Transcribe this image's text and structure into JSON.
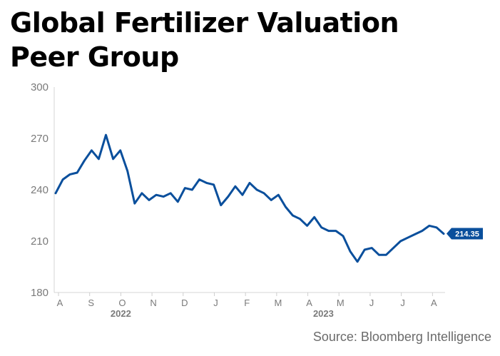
{
  "chart_data": {
    "type": "line",
    "title_line1": "Global Fertilizer Valuation",
    "title_line2": "Peer Group",
    "source": "Source: Bloomberg Intelligence",
    "y_ticks": [
      "300",
      "270",
      "240",
      "210",
      "180"
    ],
    "ylim": [
      180,
      300
    ],
    "x_month_labels": [
      "A",
      "S",
      "O",
      "N",
      "D",
      "J",
      "F",
      "M",
      "A",
      "M",
      "J",
      "J",
      "A"
    ],
    "x_year_labels": [
      "2022",
      "2023"
    ],
    "last_value_label": "214.35",
    "line_color": "#0a4f9c",
    "grid": false,
    "x": [
      "2022-08-01",
      "2022-08-08",
      "2022-08-15",
      "2022-08-22",
      "2022-08-29",
      "2022-09-05",
      "2022-09-12",
      "2022-09-19",
      "2022-09-26",
      "2022-10-03",
      "2022-10-10",
      "2022-10-17",
      "2022-10-24",
      "2022-10-31",
      "2022-11-07",
      "2022-11-14",
      "2022-11-21",
      "2022-11-28",
      "2022-12-05",
      "2022-12-12",
      "2022-12-19",
      "2022-12-26",
      "2023-01-02",
      "2023-01-09",
      "2023-01-16",
      "2023-01-23",
      "2023-01-30",
      "2023-02-06",
      "2023-02-13",
      "2023-02-20",
      "2023-02-27",
      "2023-03-06",
      "2023-03-13",
      "2023-03-20",
      "2023-03-27",
      "2023-04-03",
      "2023-04-10",
      "2023-04-17",
      "2023-04-24",
      "2023-05-01",
      "2023-05-08",
      "2023-05-15",
      "2023-05-22",
      "2023-05-29",
      "2023-06-05",
      "2023-06-12",
      "2023-06-19",
      "2023-06-26",
      "2023-07-03",
      "2023-07-10",
      "2023-07-17",
      "2023-07-24",
      "2023-07-31",
      "2023-08-07",
      "2023-08-14"
    ],
    "series": [
      {
        "values": [
          238,
          246,
          249,
          250,
          257,
          263,
          258,
          272,
          258,
          263,
          251,
          232,
          238,
          234,
          237,
          236,
          238,
          233,
          241,
          240,
          246,
          244,
          243,
          231,
          236,
          242,
          237,
          244,
          240,
          238,
          234,
          237,
          230,
          225,
          223,
          219,
          224,
          218,
          216,
          216,
          213,
          204,
          198,
          205,
          206,
          202,
          202,
          206,
          210,
          212,
          214,
          216,
          219,
          218,
          214.35
        ]
      }
    ]
  }
}
